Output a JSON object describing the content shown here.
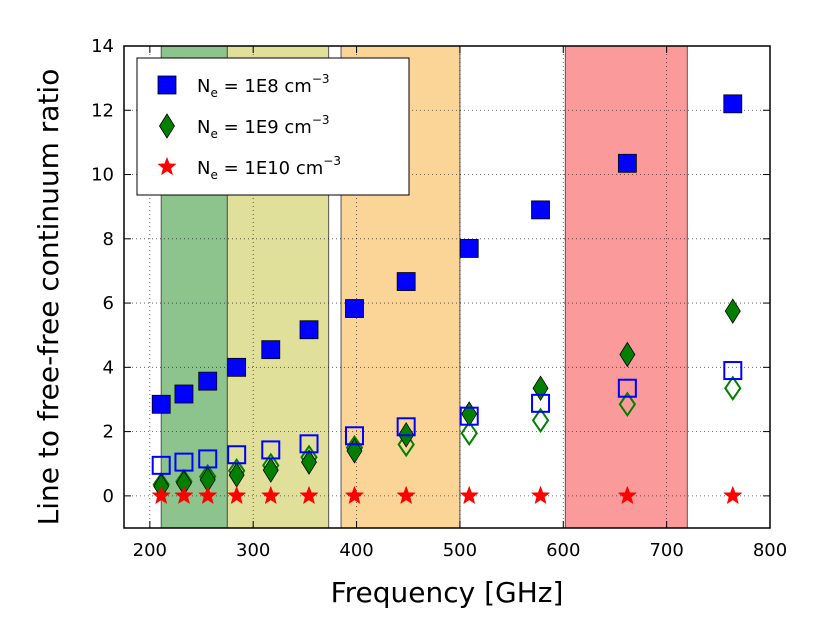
{
  "chart_data": {
    "type": "scatter",
    "title": "",
    "xlabel": "Frequency [GHz]",
    "ylabel": "Line to free-free continuum ratio",
    "xlim": [
      175,
      800
    ],
    "ylim": [
      -1,
      14
    ],
    "xticks": [
      200,
      300,
      400,
      500,
      600,
      700,
      800
    ],
    "yticks": [
      0,
      2,
      4,
      6,
      8,
      10,
      12,
      14
    ],
    "grid": true,
    "legend_position": "top-left",
    "bands": [
      {
        "x0": 211,
        "x1": 275,
        "color": "#8dc48d"
      },
      {
        "x0": 275,
        "x1": 373,
        "color": "#e0e09b"
      },
      {
        "x0": 385,
        "x1": 500,
        "color": "#fbd597"
      },
      {
        "x0": 602,
        "x1": 720,
        "color": "#fa9a9a"
      }
    ],
    "series": [
      {
        "name": "N_e = 1E8 cm^-3",
        "legend_parts": {
          "base": "N",
          "sub": "e",
          "mid": " = 1E8 cm",
          "sup": "−3"
        },
        "marker": "square",
        "color": "#0000ff",
        "x": [
          211,
          233,
          256,
          284,
          317,
          354,
          398,
          448,
          509,
          578,
          662,
          764
        ],
        "y": [
          2.85,
          3.17,
          3.57,
          4.0,
          4.55,
          5.17,
          5.83,
          6.67,
          7.7,
          8.9,
          10.35,
          12.2
        ]
      },
      {
        "name": "N_e = 1E9 cm^-3",
        "legend_parts": {
          "base": "N",
          "sub": "e",
          "mid": " = 1E9 cm",
          "sup": "−3"
        },
        "marker": "diamond",
        "color": "#007f00",
        "x": [
          211,
          233,
          256,
          284,
          317,
          354,
          398,
          448,
          509,
          578,
          662,
          764
        ],
        "y": [
          0.3,
          0.4,
          0.5,
          0.65,
          0.8,
          1.05,
          1.4,
          1.9,
          2.55,
          3.35,
          4.4,
          5.75
        ]
      },
      {
        "name": "N_e = 1E10 cm^-3",
        "legend_parts": {
          "base": "N",
          "sub": "e",
          "mid": " = 1E10 cm",
          "sup": "−3"
        },
        "marker": "star",
        "color": "#ff0000",
        "x": [
          211,
          233,
          256,
          284,
          317,
          354,
          398,
          448,
          509,
          578,
          662,
          764
        ],
        "y": [
          0.0,
          0.0,
          0.0,
          0.0,
          0.0,
          0.0,
          0.0,
          0.0,
          0.0,
          0.0,
          0.0,
          0.0
        ]
      },
      {
        "name": "open squares",
        "marker": "open-square",
        "color": "#0000ff",
        "show_in_legend": false,
        "x": [
          211,
          233,
          256,
          284,
          317,
          354,
          398,
          448,
          509,
          578,
          662,
          764
        ],
        "y": [
          0.95,
          1.05,
          1.15,
          1.28,
          1.43,
          1.62,
          1.87,
          2.15,
          2.48,
          2.88,
          3.35,
          3.9
        ]
      },
      {
        "name": "open diamonds",
        "marker": "open-diamond",
        "color": "#007f00",
        "show_in_legend": false,
        "x": [
          211,
          233,
          256,
          284,
          317,
          354,
          398,
          448,
          509,
          578,
          662,
          764
        ],
        "y": [
          0.35,
          0.45,
          0.6,
          0.78,
          0.95,
          1.2,
          1.5,
          1.6,
          1.95,
          2.35,
          2.85,
          3.35
        ]
      }
    ]
  }
}
